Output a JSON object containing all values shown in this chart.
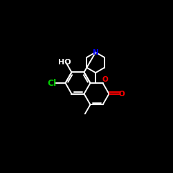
{
  "background_color": "#000000",
  "bond_color": "#ffffff",
  "cl_color": "#00cc00",
  "o_color": "#ff0000",
  "n_color": "#0000ff",
  "ho_color": "#ffffff",
  "label_cl": "Cl",
  "label_ho": "HO",
  "label_n": "N",
  "label_o_ring": "O",
  "label_o_carbonyl": "O",
  "figsize": [
    2.5,
    2.5
  ],
  "dpi": 100,
  "bl": 0.72
}
